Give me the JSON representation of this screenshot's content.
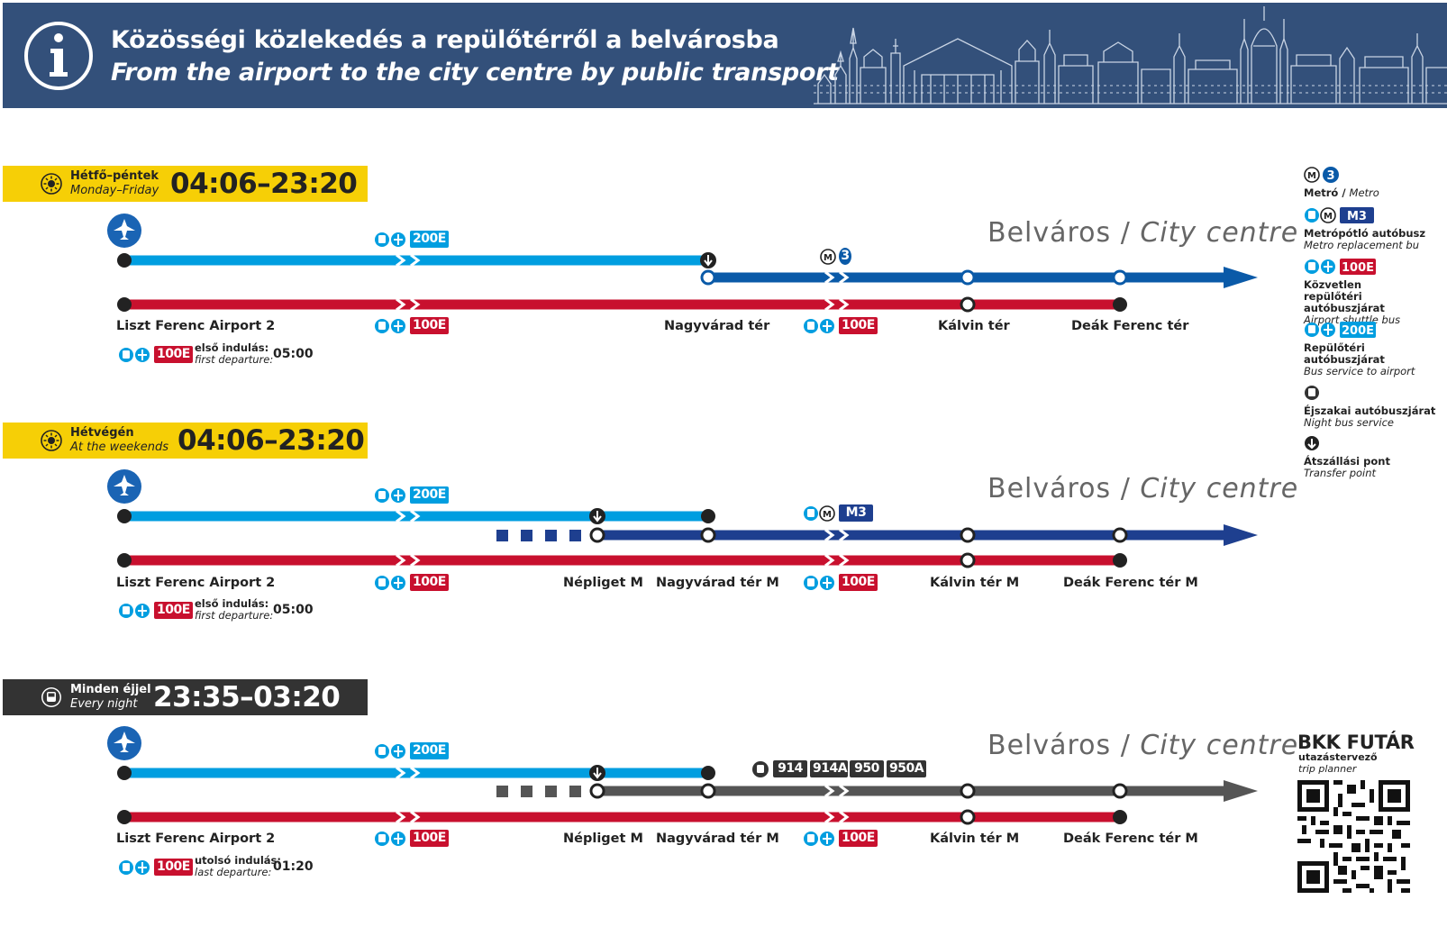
{
  "header": {
    "title_hu": "Közösségi közlekedés a repülőtérről a belvárosba",
    "title_en": "From the airport to the city centre by public transport",
    "bg_color": "#33507a"
  },
  "colors": {
    "bus_200e": "#009ee0",
    "bus_100e": "#c8102e",
    "metro_m3": "#1e3f8f",
    "metro_3": "#0a5aa8",
    "night_bus": "#555555",
    "band_day": "#f6cf06",
    "band_night": "#333333"
  },
  "sections": [
    {
      "band": {
        "hu": "Hétfő–péntek",
        "en": "Monday–Friday",
        "hours": "04:06–23:20",
        "icon": "sun-icon"
      },
      "city": {
        "hu": "Belváros",
        "sep": " / ",
        "en": "City centre"
      },
      "top_badge": "200E",
      "mid_badge": "3",
      "bottom_badges": [
        "100E",
        "100E"
      ],
      "stops": [
        "Liszt Ferenc Airport 2",
        "Nagyvárad tér",
        "Kálvin tér",
        "Deák Ferenc tér"
      ],
      "departure": {
        "badge": "100E",
        "hu": "első indulás:",
        "en": "first departure:",
        "time": "05:00"
      }
    },
    {
      "band": {
        "hu": "Hétvégén",
        "en": "At the weekends",
        "hours": "04:06–23:20",
        "icon": "sun-icon"
      },
      "city": {
        "hu": "Belváros",
        "sep": " / ",
        "en": "City centre"
      },
      "top_badge": "200E",
      "mid_badge": "M3",
      "bottom_badges": [
        "100E",
        "100E"
      ],
      "stops": [
        "Liszt Ferenc Airport 2",
        "Népliget M",
        "Nagyvárad tér M",
        "Kálvin tér M",
        "Deák Ferenc tér M"
      ],
      "departure": {
        "badge": "100E",
        "hu": "első indulás:",
        "en": "first departure:",
        "time": "05:00"
      }
    },
    {
      "band": {
        "hu": "Minden éjjel",
        "en": "Every night",
        "hours": "23:35–03:20",
        "icon": "night-bus-icon"
      },
      "city": {
        "hu": "Belváros",
        "sep": " / ",
        "en": "City centre"
      },
      "top_badge": "200E",
      "night_badges": [
        "914",
        "914A",
        "950",
        "950A"
      ],
      "bottom_badges": [
        "100E",
        "100E"
      ],
      "stops": [
        "Liszt Ferenc Airport 2",
        "Népliget M",
        "Nagyvárad tér M",
        "Kálvin tér M",
        "Deák Ferenc tér M"
      ],
      "departure": {
        "badge": "100E",
        "hu": "utolsó indulás:",
        "en": "last departure:",
        "time": "01:20"
      }
    }
  ],
  "legend": [
    {
      "badge": "3",
      "hu": "Metró / ",
      "en": "Metro"
    },
    {
      "badge": "M3",
      "hu": "Metrópótló autóbusz",
      "en": "Metro replacement bu"
    },
    {
      "badge": "100E",
      "hu": "Közvetlen repülőtéri autóbuszjárat",
      "en": "Airport shuttle bus"
    },
    {
      "badge": "200E",
      "hu": "Repülőtéri autóbuszjárat",
      "en": "Bus service to airport"
    },
    {
      "badge": "",
      "hu": "Éjszakai autóbuszjárat",
      "en": "Night bus service"
    },
    {
      "badge": "",
      "hu": "Átszállási pont",
      "en": "Transfer point"
    }
  ],
  "futar": {
    "title": "BKK FUTÁR",
    "sub_hu": "utazástervező",
    "sub_en": "trip planner"
  }
}
